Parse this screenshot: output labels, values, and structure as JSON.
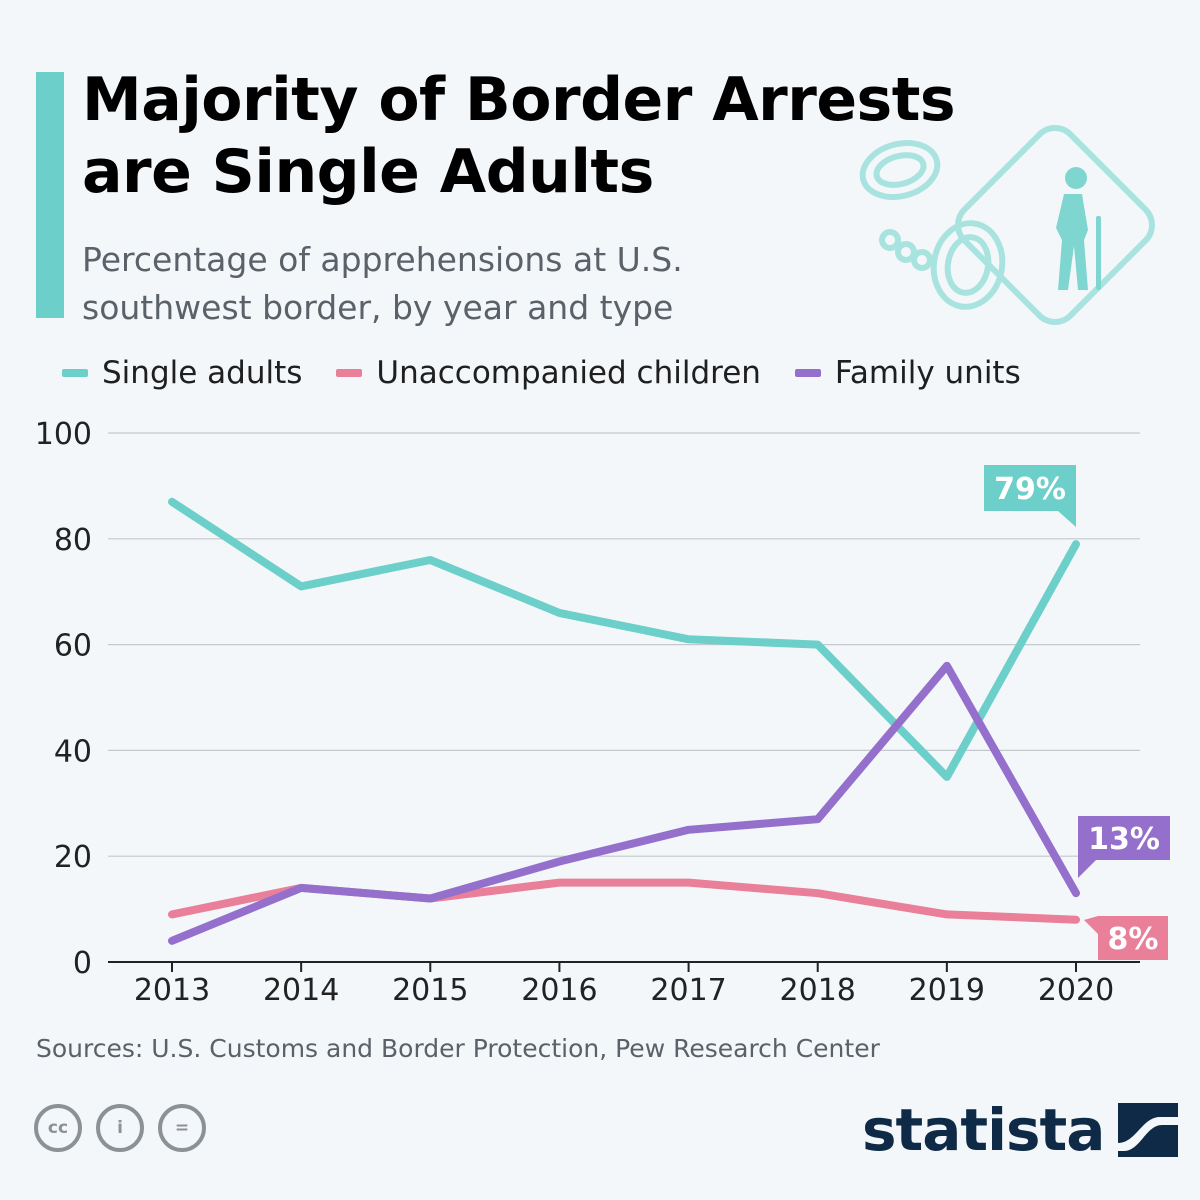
{
  "header": {
    "title": "Majority of Border Arrests are Single Adults",
    "subtitle": "Percentage of apprehensions at U.S. southwest border, by year and type"
  },
  "colors": {
    "accent": "#6ccfc9",
    "single_adults": "#6ccfc9",
    "unaccompanied_children": "#e97f98",
    "family_units": "#9470cc",
    "brand": "#0e2a47"
  },
  "chart_data": {
    "type": "line",
    "title": "Majority of Border Arrests are Single Adults",
    "xlabel": "",
    "ylabel": "",
    "ylim": [
      0,
      100
    ],
    "yticks": [
      0,
      20,
      40,
      60,
      80,
      100
    ],
    "grid": true,
    "legend_position": "top",
    "categories": [
      "2013",
      "2014",
      "2015",
      "2016",
      "2017",
      "2018",
      "2019",
      "2020"
    ],
    "series": [
      {
        "name": "Single adults",
        "color": "#6ccfc9",
        "values": [
          87,
          71,
          76,
          66,
          61,
          60,
          35,
          79
        ],
        "end_label": "79%"
      },
      {
        "name": "Unaccompanied children",
        "color": "#e97f98",
        "values": [
          9,
          14,
          12,
          15,
          15,
          13,
          9,
          8
        ],
        "end_label": "8%"
      },
      {
        "name": "Family units",
        "color": "#9470cc",
        "values": [
          4,
          14,
          12,
          19,
          25,
          27,
          56,
          13
        ],
        "end_label": "13%"
      }
    ]
  },
  "footer": {
    "source": "Sources: U.S. Customs and Border Protection, Pew Research Center",
    "license_icons": [
      "cc-icon",
      "attribution-icon",
      "no-derivatives-icon"
    ],
    "license_labels": [
      "cc",
      "i",
      "="
    ],
    "brand": "statista"
  }
}
